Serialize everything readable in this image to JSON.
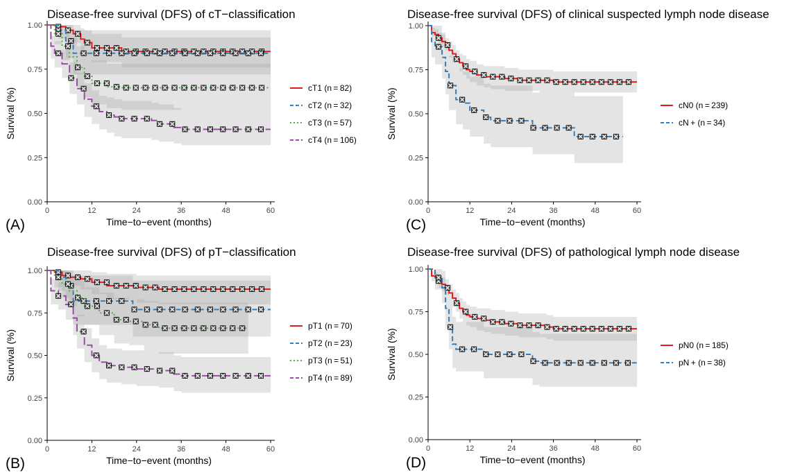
{
  "chart_data": [
    {
      "panel_label": "(A)",
      "type": "line",
      "subtype": "kaplan-meier",
      "title": "Disease-free survival (DFS) of cT−classification",
      "xlabel": "Time−to−event (months)",
      "ylabel": "Survival (%)",
      "xlim": [
        0,
        60
      ],
      "ylim": [
        0,
        1
      ],
      "xticks": [
        "0",
        "12",
        "24",
        "36",
        "48",
        "60"
      ],
      "yticks": [
        "0.00",
        "0.25",
        "0.50",
        "0.75",
        "1.00"
      ],
      "legend_position": "right",
      "series": [
        {
          "name": "cT1 (n = 82)",
          "color": "#e41a1c",
          "dash": "solid",
          "x": [
            0,
            3,
            5,
            7,
            9,
            10,
            12,
            20,
            60
          ],
          "y": [
            1.0,
            0.99,
            0.97,
            0.95,
            0.92,
            0.9,
            0.87,
            0.85,
            0.85
          ],
          "ci_lo": [
            1.0,
            0.97,
            0.93,
            0.9,
            0.86,
            0.83,
            0.79,
            0.76,
            0.76
          ],
          "ci_hi": [
            1.0,
            1.0,
            1.0,
            1.0,
            0.98,
            0.97,
            0.95,
            0.93,
            0.93
          ]
        },
        {
          "name": "cT2 (n = 32)",
          "color": "#377eb8",
          "dash": "dashed",
          "x": [
            0,
            3,
            5,
            7,
            60
          ],
          "y": [
            1.0,
            0.97,
            0.91,
            0.84,
            0.84
          ],
          "ci_lo": [
            1.0,
            0.92,
            0.81,
            0.72,
            0.72
          ],
          "ci_hi": [
            1.0,
            1.0,
            1.0,
            0.97,
            0.97
          ]
        },
        {
          "name": "cT3 (n = 57)",
          "color": "#4daf4a",
          "dash": "dotted",
          "x": [
            0,
            2,
            4,
            6,
            8,
            10,
            12,
            16,
            20,
            60
          ],
          "y": [
            1.0,
            0.95,
            0.88,
            0.82,
            0.76,
            0.71,
            0.67,
            0.65,
            0.645,
            0.645
          ],
          "ci_lo": [
            1.0,
            0.89,
            0.8,
            0.72,
            0.65,
            0.59,
            0.55,
            0.53,
            0.52,
            0.52
          ],
          "ci_hi": [
            1.0,
            1.0,
            0.97,
            0.93,
            0.88,
            0.84,
            0.8,
            0.78,
            0.78,
            0.78
          ]
        },
        {
          "name": "cT4 (n = 106)",
          "color": "#984ea3",
          "dash": "longdash",
          "x": [
            0,
            1,
            2,
            4,
            6,
            8,
            10,
            12,
            14,
            16,
            18,
            20,
            24,
            28,
            30,
            34,
            36,
            60
          ],
          "y": [
            1.0,
            0.88,
            0.84,
            0.78,
            0.7,
            0.64,
            0.58,
            0.54,
            0.51,
            0.49,
            0.48,
            0.47,
            0.47,
            0.46,
            0.44,
            0.42,
            0.41,
            0.41
          ],
          "ci_lo": [
            1.0,
            0.81,
            0.76,
            0.7,
            0.61,
            0.55,
            0.48,
            0.44,
            0.41,
            0.39,
            0.37,
            0.36,
            0.36,
            0.35,
            0.34,
            0.33,
            0.32,
            0.32
          ],
          "ci_hi": [
            1.0,
            0.94,
            0.91,
            0.86,
            0.79,
            0.73,
            0.67,
            0.63,
            0.6,
            0.59,
            0.58,
            0.57,
            0.57,
            0.56,
            0.55,
            0.53,
            0.52,
            0.52
          ]
        }
      ]
    },
    {
      "panel_label": "(B)",
      "type": "line",
      "subtype": "kaplan-meier",
      "title": "Disease-free survival (DFS) of pT−classification",
      "xlabel": "Time−to−event (months)",
      "ylabel": "Survival (%)",
      "xlim": [
        0,
        60
      ],
      "ylim": [
        0,
        1
      ],
      "xticks": [
        "0",
        "12",
        "24",
        "36",
        "48",
        "60"
      ],
      "yticks": [
        "0.00",
        "0.25",
        "0.50",
        "0.75",
        "1.00"
      ],
      "legend_position": "right",
      "series": [
        {
          "name": "pT1 (n = 70)",
          "color": "#e41a1c",
          "dash": "solid",
          "x": [
            0,
            2,
            4,
            6,
            9,
            12,
            16,
            24,
            30,
            60
          ],
          "y": [
            1.0,
            0.99,
            0.97,
            0.96,
            0.95,
            0.93,
            0.91,
            0.9,
            0.89,
            0.89
          ],
          "ci_lo": [
            1.0,
            0.97,
            0.93,
            0.91,
            0.89,
            0.86,
            0.83,
            0.81,
            0.8,
            0.8
          ],
          "ci_hi": [
            1.0,
            1.0,
            1.0,
            1.0,
            1.0,
            0.99,
            0.98,
            0.97,
            0.97,
            0.97
          ]
        },
        {
          "name": "pT2 (n = 23)",
          "color": "#377eb8",
          "dash": "dashed",
          "x": [
            0,
            3,
            5,
            7,
            23,
            56,
            60
          ],
          "y": [
            1.0,
            0.96,
            0.91,
            0.82,
            0.77,
            0.77,
            0.77
          ],
          "ci_lo": [
            1.0,
            0.88,
            0.79,
            0.68,
            0.61,
            0.61,
            0.61
          ],
          "ci_hi": [
            1.0,
            1.0,
            1.0,
            0.97,
            0.94,
            0.94,
            0.94
          ]
        },
        {
          "name": "pT3 (n = 51)",
          "color": "#4daf4a",
          "dash": "dotted",
          "x": [
            0,
            2,
            4,
            6,
            8,
            10,
            14,
            18,
            22,
            26,
            30,
            54
          ],
          "y": [
            1.0,
            0.96,
            0.92,
            0.88,
            0.84,
            0.79,
            0.75,
            0.71,
            0.7,
            0.68,
            0.66,
            0.66
          ],
          "ci_lo": [
            1.0,
            0.9,
            0.84,
            0.79,
            0.73,
            0.68,
            0.62,
            0.57,
            0.56,
            0.53,
            0.51,
            0.51
          ],
          "ci_hi": [
            1.0,
            1.0,
            1.0,
            0.97,
            0.94,
            0.9,
            0.87,
            0.84,
            0.83,
            0.82,
            0.81,
            0.81
          ]
        },
        {
          "name": "pT4 (n = 89)",
          "color": "#984ea3",
          "dash": "longdash",
          "x": [
            0,
            1,
            3,
            5,
            7,
            8,
            10,
            12,
            14,
            16,
            20,
            24,
            30,
            34,
            36,
            60
          ],
          "y": [
            1.0,
            0.88,
            0.85,
            0.8,
            0.72,
            0.64,
            0.56,
            0.5,
            0.46,
            0.44,
            0.43,
            0.42,
            0.41,
            0.39,
            0.38,
            0.38
          ],
          "ci_lo": [
            1.0,
            0.8,
            0.77,
            0.71,
            0.62,
            0.54,
            0.46,
            0.4,
            0.36,
            0.34,
            0.33,
            0.32,
            0.31,
            0.29,
            0.28,
            0.28
          ],
          "ci_hi": [
            1.0,
            0.95,
            0.93,
            0.89,
            0.82,
            0.74,
            0.66,
            0.6,
            0.56,
            0.54,
            0.53,
            0.53,
            0.52,
            0.5,
            0.49,
            0.49
          ]
        }
      ]
    },
    {
      "panel_label": "(C)",
      "type": "line",
      "subtype": "kaplan-meier",
      "title": "Disease-free survival (DFS) of clinical suspected lymph node disease",
      "xlabel": "Time−to−event (months)",
      "ylabel": "Survival (%)",
      "xlim": [
        0,
        60
      ],
      "ylim": [
        0,
        1
      ],
      "xticks": [
        "0",
        "12",
        "24",
        "36",
        "48",
        "60"
      ],
      "yticks": [
        "0.00",
        "0.25",
        "0.50",
        "0.75",
        "1.00"
      ],
      "legend_position": "right",
      "series": [
        {
          "name": "cN0 (n = 239)",
          "color": "#e41a1c",
          "dash": "solid",
          "x": [
            0,
            1,
            2,
            3,
            4,
            5,
            6,
            7,
            8,
            9,
            10,
            11,
            12,
            14,
            16,
            18,
            22,
            26,
            32,
            36,
            60
          ],
          "y": [
            1.0,
            0.96,
            0.95,
            0.93,
            0.91,
            0.89,
            0.86,
            0.84,
            0.81,
            0.79,
            0.77,
            0.75,
            0.74,
            0.72,
            0.71,
            0.71,
            0.7,
            0.69,
            0.69,
            0.68,
            0.68
          ],
          "ci_lo": [
            1.0,
            0.94,
            0.92,
            0.9,
            0.88,
            0.86,
            0.82,
            0.79,
            0.76,
            0.74,
            0.72,
            0.7,
            0.68,
            0.66,
            0.65,
            0.64,
            0.63,
            0.63,
            0.62,
            0.62,
            0.62
          ],
          "ci_hi": [
            1.0,
            0.99,
            0.98,
            0.96,
            0.95,
            0.93,
            0.91,
            0.89,
            0.86,
            0.84,
            0.83,
            0.81,
            0.8,
            0.78,
            0.77,
            0.77,
            0.76,
            0.75,
            0.75,
            0.74,
            0.74
          ]
        },
        {
          "name": "cN + (n = 34)",
          "color": "#377eb8",
          "dash": "dashed",
          "x": [
            0,
            1,
            2,
            4,
            5,
            6,
            8,
            10,
            12,
            16,
            18,
            24,
            30,
            36,
            42,
            56
          ],
          "y": [
            1.0,
            0.91,
            0.88,
            0.82,
            0.74,
            0.66,
            0.58,
            0.56,
            0.52,
            0.48,
            0.46,
            0.46,
            0.42,
            0.42,
            0.37,
            0.37
          ],
          "ci_lo": [
            1.0,
            0.82,
            0.78,
            0.7,
            0.61,
            0.52,
            0.44,
            0.41,
            0.37,
            0.33,
            0.31,
            0.31,
            0.27,
            0.27,
            0.22,
            0.22
          ],
          "ci_hi": [
            1.0,
            1.0,
            1.0,
            0.96,
            0.9,
            0.83,
            0.76,
            0.74,
            0.71,
            0.67,
            0.66,
            0.66,
            0.62,
            0.62,
            0.6,
            0.6
          ]
        }
      ]
    },
    {
      "panel_label": "(D)",
      "type": "line",
      "subtype": "kaplan-meier",
      "title": "Disease-free survival (DFS) of pathological lymph node disease",
      "xlabel": "Time−to−event (months)",
      "ylabel": "Survival (%)",
      "xlim": [
        0,
        60
      ],
      "ylim": [
        0,
        1
      ],
      "xticks": [
        "0",
        "12",
        "24",
        "36",
        "48",
        "60"
      ],
      "yticks": [
        "0.00",
        "0.25",
        "0.50",
        "0.75",
        "1.00"
      ],
      "legend_position": "right",
      "series": [
        {
          "name": "pN0 (n = 185)",
          "color": "#e41a1c",
          "dash": "solid",
          "x": [
            0,
            1,
            2,
            3,
            4,
            5,
            6,
            7,
            8,
            9,
            10,
            11,
            12,
            14,
            16,
            18,
            22,
            26,
            30,
            34,
            36,
            60
          ],
          "y": [
            1.0,
            0.96,
            0.95,
            0.93,
            0.91,
            0.89,
            0.86,
            0.83,
            0.8,
            0.77,
            0.75,
            0.73,
            0.72,
            0.71,
            0.7,
            0.69,
            0.68,
            0.67,
            0.67,
            0.66,
            0.65,
            0.65
          ],
          "ci_lo": [
            1.0,
            0.93,
            0.92,
            0.89,
            0.87,
            0.85,
            0.81,
            0.78,
            0.75,
            0.71,
            0.69,
            0.67,
            0.66,
            0.64,
            0.63,
            0.62,
            0.61,
            0.6,
            0.6,
            0.59,
            0.58,
            0.58
          ],
          "ci_hi": [
            1.0,
            0.99,
            0.98,
            0.96,
            0.95,
            0.94,
            0.91,
            0.88,
            0.86,
            0.83,
            0.81,
            0.79,
            0.78,
            0.77,
            0.77,
            0.76,
            0.75,
            0.74,
            0.74,
            0.73,
            0.72,
            0.72
          ]
        },
        {
          "name": "pN + (n = 38)",
          "color": "#377eb8",
          "dash": "dashed",
          "x": [
            0,
            2,
            4,
            5,
            6,
            7,
            8,
            12,
            16,
            24,
            30,
            32,
            60
          ],
          "y": [
            1.0,
            0.95,
            0.89,
            0.77,
            0.66,
            0.56,
            0.53,
            0.53,
            0.5,
            0.5,
            0.46,
            0.45,
            0.45
          ],
          "ci_lo": [
            1.0,
            0.88,
            0.8,
            0.65,
            0.53,
            0.42,
            0.4,
            0.4,
            0.36,
            0.36,
            0.32,
            0.31,
            0.31
          ],
          "ci_hi": [
            1.0,
            1.0,
            0.99,
            0.91,
            0.81,
            0.72,
            0.69,
            0.69,
            0.66,
            0.66,
            0.63,
            0.62,
            0.62
          ]
        }
      ]
    }
  ]
}
